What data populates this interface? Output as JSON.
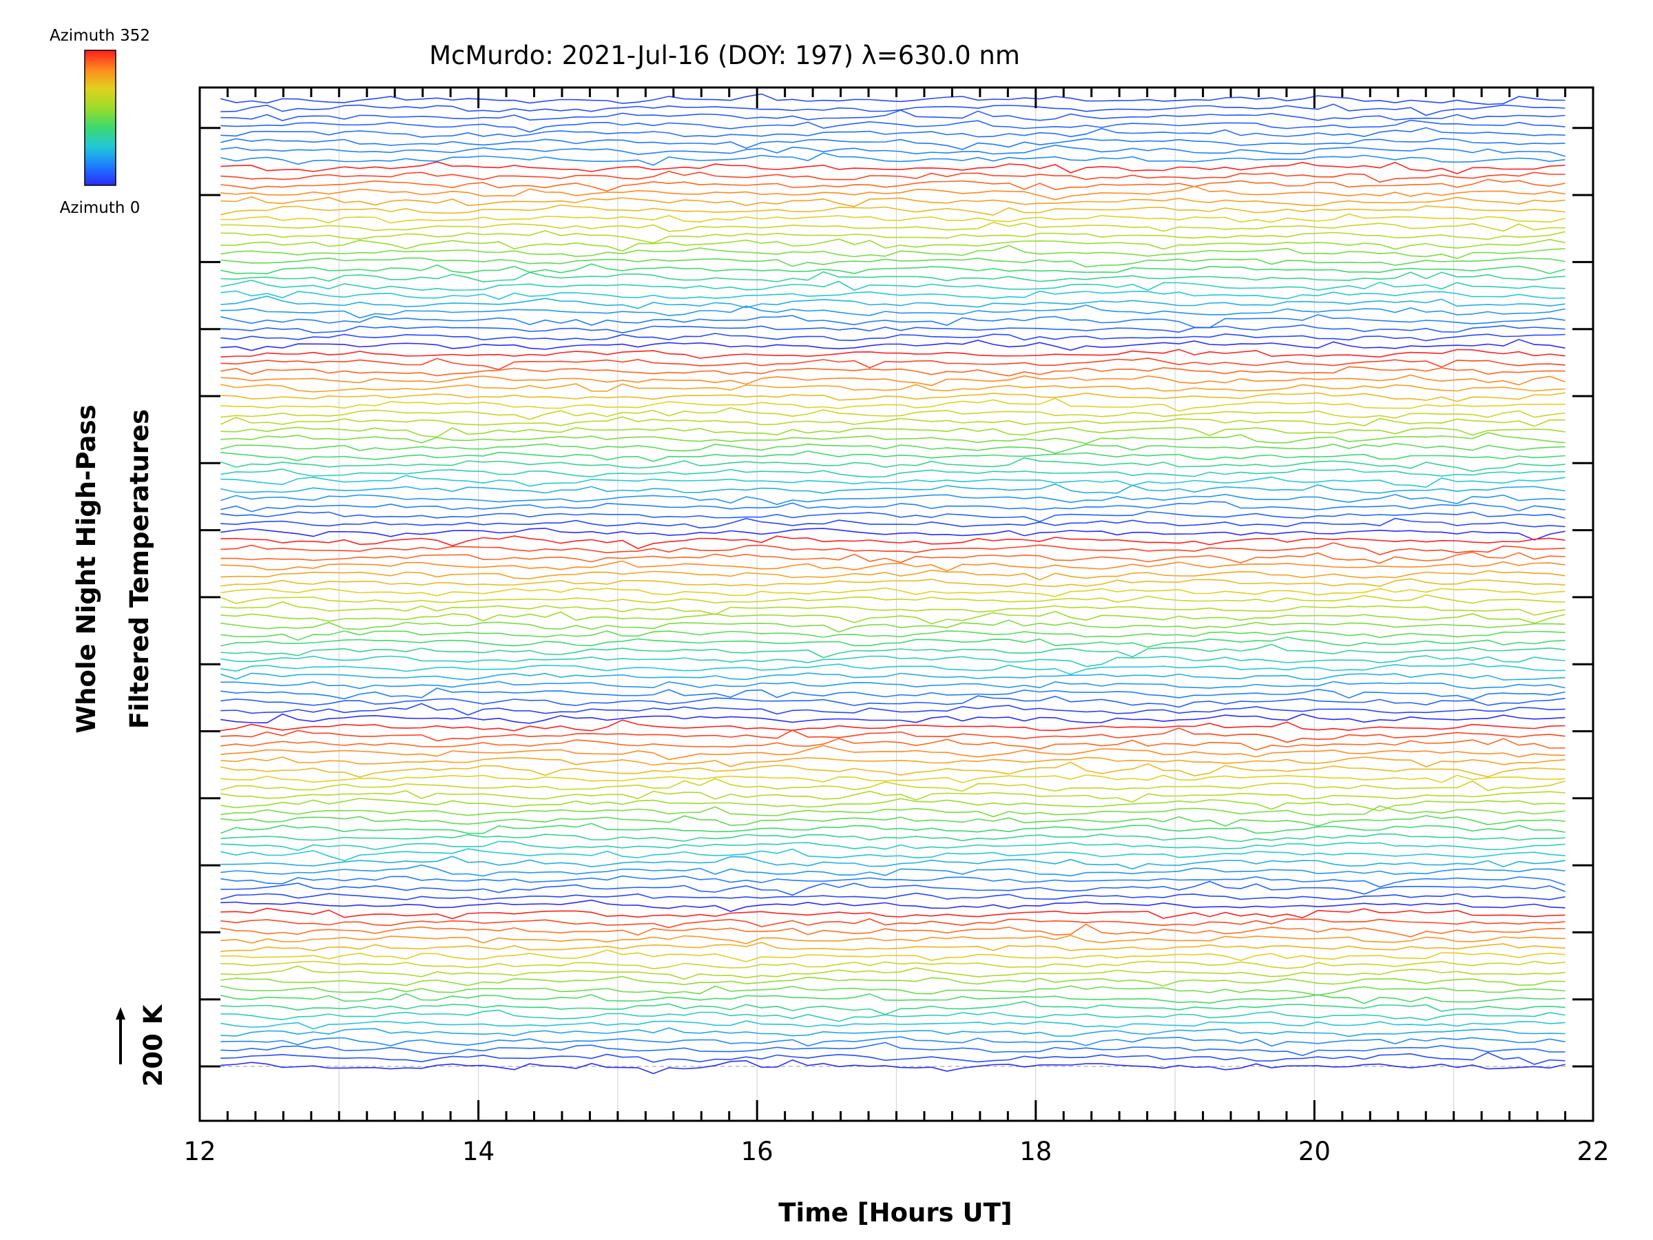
{
  "chart_data": {
    "type": "line",
    "title": "McMurdo: 2021-Jul-16 (DOY: 197) λ=630.0 nm",
    "xlabel": "Time [Hours UT]",
    "ylabel_line1": "Whole Night High-Pass",
    "ylabel_line2": "Filtered Temperatures",
    "scale_label": "200 K",
    "xlim": [
      12,
      22
    ],
    "x_ticks": [
      "12",
      "14",
      "16",
      "18",
      "20",
      "22"
    ],
    "time_range": [
      12.15,
      21.8
    ],
    "colorbar": {
      "top_label": "Azimuth  352",
      "bottom_label": "Azimuth  0",
      "colors": [
        "#2a2aff",
        "#1e7dff",
        "#21c8d8",
        "#3cd96e",
        "#9bdc2a",
        "#e0d21e",
        "#ff8a1e",
        "#ff1e1e"
      ]
    },
    "series_count": 115,
    "series_note": "Stacked high-pass filtered temperature traces, one per azimuth, offset vertically; colour encodes azimuth 0 (blue) to 352 (red)."
  }
}
